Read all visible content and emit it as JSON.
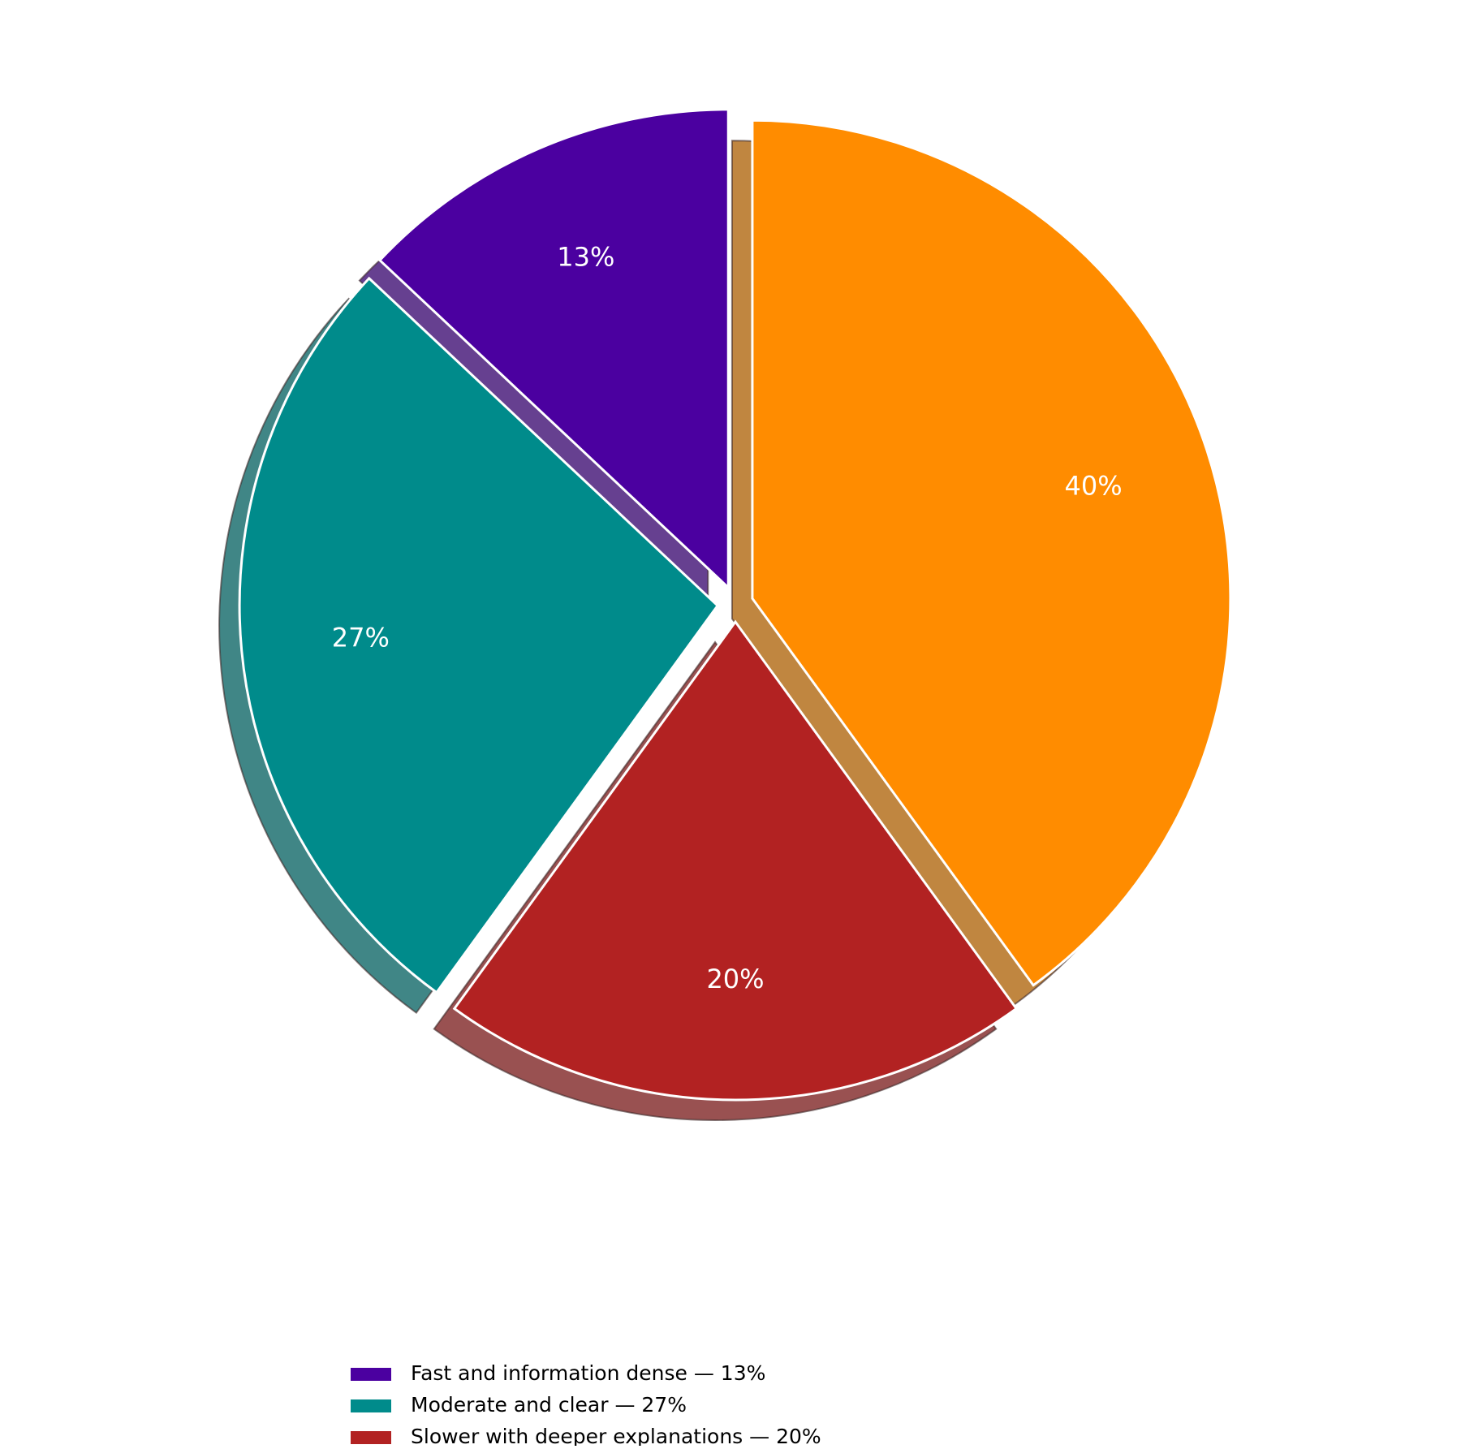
{
  "chart_data": {
    "type": "pie",
    "categories": [
      "Fast and information dense — 13%",
      "Moderate and clear — 27%",
      "Slower with deeper explanations — 20%",
      null
    ],
    "values": [
      13,
      27,
      20,
      40
    ],
    "value_labels": [
      "13%",
      "27%",
      "20%",
      "40%"
    ],
    "colors": [
      "#4b00a0",
      "#008b8b",
      "#b22222",
      "#ff8c00"
    ],
    "start_angle": 90,
    "shadow": true,
    "legend": "lower center"
  }
}
